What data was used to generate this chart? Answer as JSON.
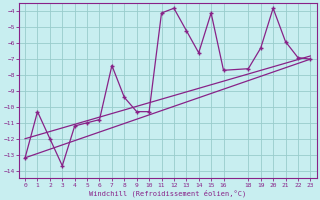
{
  "xlabel": "Windchill (Refroidissement éolien,°C)",
  "bg_color": "#c8eef0",
  "line_color": "#882288",
  "grid_color": "#99cccc",
  "xlim": [
    -0.5,
    23.5
  ],
  "ylim": [
    -14.5,
    -3.5
  ],
  "xticks": [
    0,
    1,
    2,
    3,
    4,
    5,
    6,
    7,
    8,
    9,
    10,
    11,
    12,
    13,
    14,
    15,
    16,
    18,
    19,
    20,
    21,
    22,
    23
  ],
  "yticks": [
    -14,
    -13,
    -12,
    -11,
    -10,
    -9,
    -8,
    -7,
    -6,
    -5,
    -4
  ],
  "series1_x": [
    0,
    1,
    2,
    3,
    4,
    5,
    6,
    7,
    8,
    9,
    10,
    11,
    12,
    13,
    14,
    15,
    16,
    18,
    19,
    20,
    21,
    22,
    23
  ],
  "series1_y": [
    -13.2,
    -10.3,
    -12.0,
    -13.7,
    -11.2,
    -11.0,
    -10.8,
    -7.4,
    -9.4,
    -10.3,
    -10.3,
    -4.1,
    -3.8,
    -5.2,
    -6.6,
    -4.1,
    -7.7,
    -7.6,
    -6.3,
    -3.8,
    -5.9,
    -6.9,
    -7.0
  ],
  "series2_x": [
    0,
    23
  ],
  "series2_y": [
    -12.0,
    -6.8
  ],
  "series3_x": [
    0,
    23
  ],
  "series3_y": [
    -13.2,
    -7.0
  ]
}
